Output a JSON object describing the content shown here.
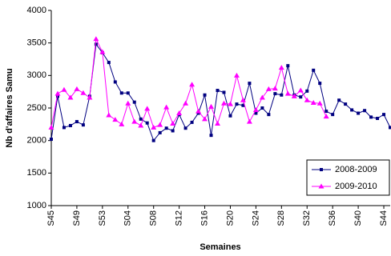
{
  "chart_data": {
    "type": "line",
    "y_label": "Nb d'affaires Samu",
    "x_label": "Semaines",
    "categories": [
      "S45",
      null,
      null,
      null,
      "S49",
      null,
      null,
      null,
      "S53",
      null,
      null,
      null,
      "S04",
      null,
      null,
      null,
      "S08",
      null,
      null,
      null,
      "S12",
      null,
      null,
      null,
      "S16",
      null,
      null,
      null,
      "S20",
      null,
      null,
      null,
      "S24",
      null,
      null,
      null,
      "S28",
      null,
      null,
      null,
      "S32",
      null,
      null,
      null,
      "S36",
      null,
      null,
      null,
      "S40",
      null,
      null,
      null,
      "S44",
      null
    ],
    "series": [
      {
        "name": "2008-2009",
        "color": "#000080",
        "marker": "square",
        "values": [
          2020,
          2680,
          2200,
          2230,
          2290,
          2240,
          2680,
          3480,
          3350,
          3200,
          2900,
          2730,
          2730,
          2590,
          2330,
          2270,
          2000,
          2120,
          2190,
          2150,
          2400,
          2190,
          2280,
          2420,
          2700,
          2080,
          2770,
          2740,
          2380,
          2560,
          2540,
          2880,
          2420,
          2500,
          2400,
          2720,
          2700,
          3150,
          2700,
          2670,
          2760,
          3080,
          2880,
          2450,
          2400,
          2620,
          2560,
          2470,
          2420,
          2460,
          2360,
          2340,
          2400,
          2200
        ]
      },
      {
        "name": "2009-2010",
        "color": "#ff00ff",
        "marker": "triangle",
        "values": [
          2200,
          2720,
          2780,
          2660,
          2790,
          2730,
          2660,
          3560,
          3360,
          2390,
          2320,
          2250,
          2570,
          2290,
          2230,
          2490,
          2200,
          2240,
          2510,
          2260,
          2420,
          2570,
          2860,
          2450,
          2330,
          2520,
          2260,
          2570,
          2560,
          3000,
          2620,
          2290,
          2470,
          2660,
          2790,
          2800,
          3120,
          2720,
          2680,
          2770,
          2620,
          2580,
          2570,
          2370,
          null,
          null,
          null,
          null,
          null,
          null,
          null,
          null,
          null,
          null
        ]
      }
    ],
    "ylim": [
      1000,
      4000
    ],
    "yticks": [
      1000,
      1500,
      2000,
      2500,
      3000,
      3500,
      4000
    ],
    "grid": false,
    "legend": "lower right"
  }
}
